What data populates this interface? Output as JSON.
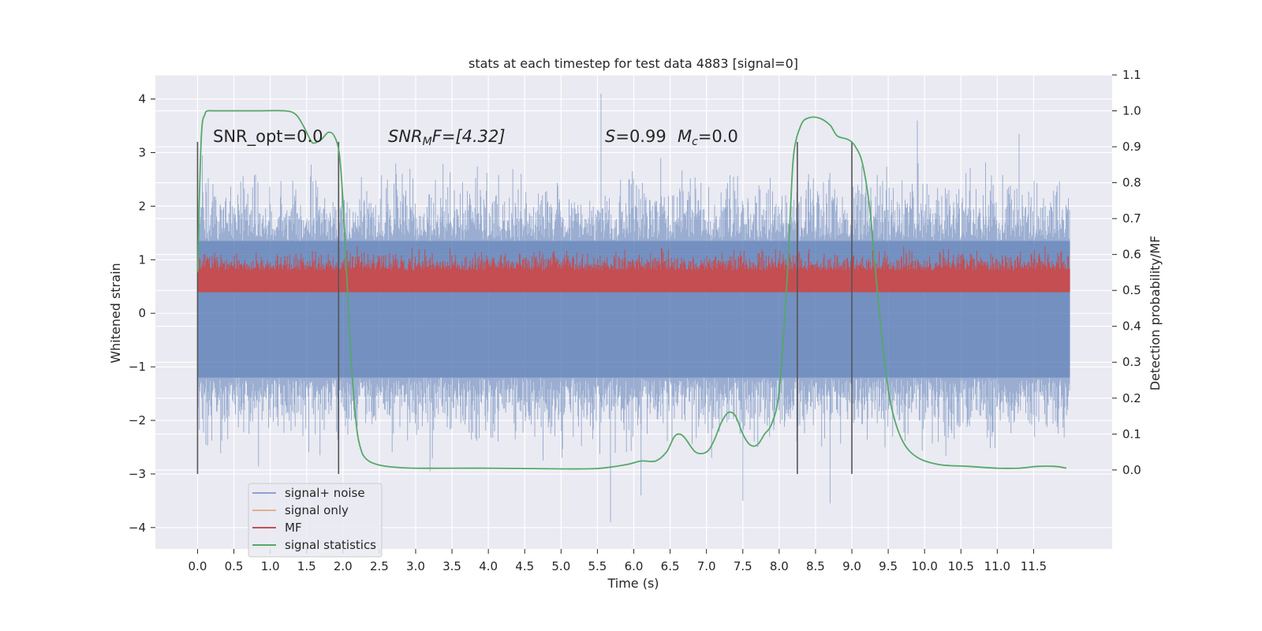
{
  "chart_data": {
    "type": "line",
    "title": "stats at each timestep for test data 4883 [signal=0]",
    "xlabel": "Time (s)",
    "ylabel": "Whitened strain",
    "y2label": "Detection probability/MF",
    "xlim": [
      -0.58,
      12.58
    ],
    "ylim": [
      -4.4,
      4.45
    ],
    "y2lim": [
      -0.22,
      1.1
    ],
    "xticks": [
      "0.0",
      "0.5",
      "1.0",
      "1.5",
      "2.0",
      "2.5",
      "3.0",
      "3.5",
      "4.0",
      "4.5",
      "5.0",
      "5.5",
      "6.0",
      "6.5",
      "7.0",
      "7.5",
      "8.0",
      "8.5",
      "9.0",
      "9.5",
      "10.0",
      "10.5",
      "11.0",
      "11.5"
    ],
    "yticks": [
      "4",
      "3",
      "2",
      "1",
      "0",
      "−1",
      "−2",
      "−3",
      "−4"
    ],
    "y2ticks": [
      "1.1",
      "1.0",
      "0.9",
      "0.8",
      "0.7",
      "0.6",
      "0.5",
      "0.4",
      "0.3",
      "0.2",
      "0.1",
      "0.0"
    ],
    "grid": true,
    "legend_position": "lower-left",
    "colors": {
      "background": "#eaeaf2",
      "grid": "#ffffff",
      "noise": "#4c72b0",
      "signal_only": "#dd8452",
      "mf": "#c44e52",
      "stats": "#55a868",
      "vlines": "#555555"
    },
    "annotations": {
      "snr_opt": "SNR_opt=0.0",
      "snr_mf_base": "SNR",
      "snr_mf_sub": "M",
      "snr_mf_rest": "F=[4.32]",
      "s_label": "S",
      "s_value": "=0.99",
      "mc_base": "M",
      "mc_sub": "c",
      "mc_value": "=0.0"
    },
    "vertical_lines_x": [
      0.0,
      1.94,
      8.25,
      9.0
    ],
    "vertical_lines_range": [
      -3.0,
      3.2
    ],
    "series": [
      {
        "name": "signal+ noise",
        "kind": "noisy band",
        "x_range": [
          0.0,
          12.0
        ],
        "dense_band": [
          -1.2,
          1.35
        ],
        "typical_extent": [
          -2.3,
          2.4
        ],
        "peaks": [
          [
            5.55,
            4.1
          ],
          [
            9.9,
            3.6
          ],
          [
            11.3,
            3.35
          ],
          [
            5.68,
            -3.9
          ],
          [
            8.7,
            -3.55
          ],
          [
            6.1,
            -3.4
          ],
          [
            7.5,
            -3.5
          ]
        ],
        "alpha": 0.5
      },
      {
        "name": "signal only",
        "kind": "line",
        "values": []
      },
      {
        "name": "MF",
        "kind": "noisy band (right axis)",
        "x_range": [
          0.0,
          12.0
        ],
        "baseline": 0.5,
        "typical_extent": [
          0.5,
          0.62
        ],
        "max": 0.65
      },
      {
        "name": "signal statistics",
        "kind": "line (right axis)",
        "x": [
          0.0,
          0.05,
          0.1,
          0.15,
          0.2,
          0.4,
          0.8,
          1.2,
          1.35,
          1.45,
          1.55,
          1.6,
          1.7,
          1.8,
          1.88,
          1.95,
          2.0,
          2.05,
          2.1,
          2.15,
          2.2,
          2.25,
          2.3,
          2.4,
          2.6,
          3.0,
          4.0,
          5.0,
          5.5,
          5.9,
          6.1,
          6.3,
          6.45,
          6.55,
          6.62,
          6.7,
          6.85,
          7.0,
          7.1,
          7.2,
          7.3,
          7.4,
          7.5,
          7.6,
          7.7,
          7.8,
          7.9,
          8.0,
          8.1,
          8.15,
          8.2,
          8.3,
          8.4,
          8.55,
          8.7,
          8.8,
          8.95,
          9.05,
          9.15,
          9.25,
          9.35,
          9.45,
          9.55,
          9.7,
          9.9,
          10.2,
          10.6,
          11.0,
          11.3,
          11.55,
          11.8,
          11.95
        ],
        "values": [
          0.55,
          0.92,
          0.99,
          1.0,
          1.0,
          1.0,
          1.0,
          1.0,
          0.99,
          0.96,
          0.92,
          0.91,
          0.92,
          0.94,
          0.93,
          0.88,
          0.75,
          0.55,
          0.35,
          0.2,
          0.1,
          0.055,
          0.035,
          0.02,
          0.01,
          0.005,
          0.005,
          0.003,
          0.004,
          0.015,
          0.025,
          0.025,
          0.05,
          0.09,
          0.1,
          0.09,
          0.05,
          0.05,
          0.08,
          0.13,
          0.16,
          0.15,
          0.1,
          0.07,
          0.07,
          0.1,
          0.13,
          0.22,
          0.5,
          0.7,
          0.88,
          0.96,
          0.98,
          0.98,
          0.96,
          0.93,
          0.92,
          0.9,
          0.85,
          0.72,
          0.5,
          0.3,
          0.17,
          0.08,
          0.035,
          0.015,
          0.01,
          0.005,
          0.005,
          0.01,
          0.01,
          0.005
        ]
      }
    ]
  }
}
